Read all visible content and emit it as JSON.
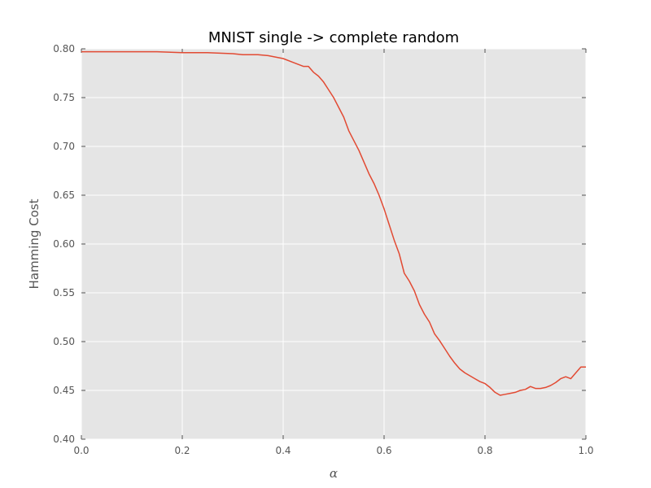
{
  "chart_data": {
    "type": "line",
    "title": "MNIST single -> complete random",
    "xlabel": "α",
    "ylabel": "Hamming Cost",
    "xlim": [
      0.0,
      1.0
    ],
    "ylim": [
      0.4,
      0.8
    ],
    "xticks": [
      0.0,
      0.2,
      0.4,
      0.6,
      0.8,
      1.0
    ],
    "xtick_labels": [
      "0.0",
      "0.2",
      "0.4",
      "0.6",
      "0.8",
      "1.0"
    ],
    "yticks": [
      0.4,
      0.45,
      0.5,
      0.55,
      0.6,
      0.65,
      0.7,
      0.75,
      0.8
    ],
    "ytick_labels": [
      "0.40",
      "0.45",
      "0.50",
      "0.55",
      "0.60",
      "0.65",
      "0.70",
      "0.75",
      "0.80"
    ],
    "grid": true,
    "colors": {
      "series": "#e24a33",
      "plot_background": "#e5e5e5",
      "grid": "#ffffff"
    },
    "series": [
      {
        "x": [
          0.0,
          0.05,
          0.1,
          0.15,
          0.2,
          0.25,
          0.3,
          0.32,
          0.35,
          0.37,
          0.4,
          0.42,
          0.44,
          0.45,
          0.46,
          0.47,
          0.48,
          0.49,
          0.5,
          0.51,
          0.52,
          0.53,
          0.54,
          0.55,
          0.56,
          0.57,
          0.58,
          0.59,
          0.6,
          0.61,
          0.62,
          0.63,
          0.64,
          0.65,
          0.66,
          0.67,
          0.68,
          0.69,
          0.7,
          0.71,
          0.72,
          0.73,
          0.74,
          0.75,
          0.76,
          0.77,
          0.78,
          0.79,
          0.8,
          0.81,
          0.82,
          0.83,
          0.84,
          0.85,
          0.86,
          0.87,
          0.88,
          0.89,
          0.9,
          0.91,
          0.92,
          0.93,
          0.94,
          0.95,
          0.96,
          0.97,
          0.98,
          0.99,
          1.0
        ],
        "values": [
          0.797,
          0.797,
          0.797,
          0.797,
          0.796,
          0.796,
          0.795,
          0.794,
          0.794,
          0.793,
          0.79,
          0.786,
          0.782,
          0.782,
          0.776,
          0.772,
          0.766,
          0.758,
          0.75,
          0.74,
          0.73,
          0.716,
          0.706,
          0.696,
          0.684,
          0.672,
          0.662,
          0.65,
          0.636,
          0.62,
          0.604,
          0.59,
          0.57,
          0.562,
          0.552,
          0.538,
          0.528,
          0.52,
          0.508,
          0.501,
          0.493,
          0.485,
          0.478,
          0.472,
          0.468,
          0.465,
          0.462,
          0.459,
          0.457,
          0.453,
          0.448,
          0.445,
          0.446,
          0.447,
          0.448,
          0.45,
          0.451,
          0.454,
          0.452,
          0.452,
          0.453,
          0.455,
          0.458,
          0.462,
          0.464,
          0.462,
          0.468,
          0.474,
          0.474
        ]
      }
    ]
  }
}
